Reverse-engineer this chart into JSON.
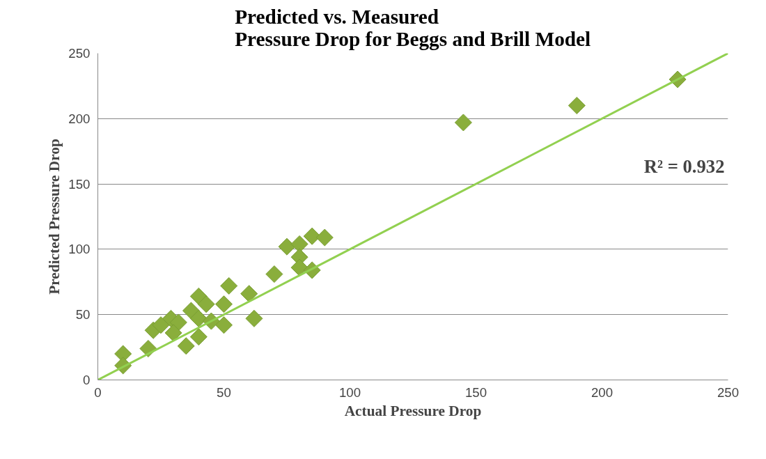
{
  "chart_data": {
    "type": "scatter",
    "title": "Predicted vs. Measured\nPressure Drop for Beggs and Brill Model",
    "xlabel": "Actual Pressure Drop",
    "ylabel": "Predicted Pressure Drop",
    "x": [
      10,
      10,
      20,
      22,
      25,
      29,
      32,
      30,
      35,
      37,
      40,
      40,
      40,
      43,
      45,
      50,
      50,
      52,
      60,
      62,
      70,
      75,
      80,
      80,
      80,
      85,
      85,
      90,
      145,
      190,
      230
    ],
    "series": [
      {
        "color": "#8aae3c",
        "marker": "diamond",
        "values": [
          20,
          11,
          24,
          38,
          42,
          47,
          44,
          36,
          26,
          53,
          64,
          47,
          33,
          58,
          45,
          42,
          58,
          72,
          66,
          47,
          81,
          102,
          104,
          94,
          86,
          110,
          84,
          109,
          197,
          210,
          230
        ]
      },
      {
        "type": "line",
        "color": "#92d050",
        "x": [
          0,
          250
        ],
        "values": [
          0,
          250
        ]
      }
    ],
    "annotations": [
      "R² = 0.932"
    ],
    "xlim": [
      0,
      250
    ],
    "ylim": [
      0,
      250
    ],
    "xticks": [
      0,
      50,
      100,
      150,
      200,
      250
    ],
    "yticks": [
      0,
      50,
      100,
      150,
      200,
      250
    ],
    "grid": "y"
  }
}
